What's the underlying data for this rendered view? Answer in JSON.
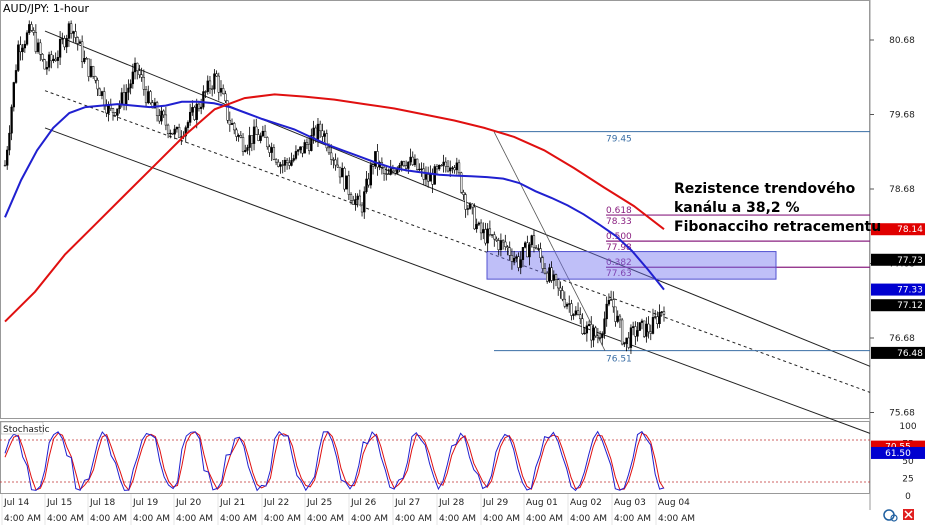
{
  "chart_data": {
    "type": "candlestick",
    "title": "AUD/JPY: 1-hour",
    "price_axis": {
      "ylim": [
        75.5,
        81.0
      ],
      "ticks": [
        "80.68",
        "79.68",
        "78.68",
        "77.68",
        "76.68",
        "75.68"
      ],
      "tick_values": [
        80.68,
        79.68,
        78.68,
        77.68,
        76.68,
        75.68
      ]
    },
    "price_labels": [
      {
        "text": "78.14",
        "value": 78.14,
        "color": "#e00000"
      },
      {
        "text": "77.73",
        "value": 77.73,
        "color": "#000000"
      },
      {
        "text": "77.33",
        "value": 77.33,
        "color": "#0000d0"
      },
      {
        "text": "77.12",
        "value": 77.12,
        "color": "#000000"
      },
      {
        "text": "76.48",
        "value": 76.48,
        "color": "#000000"
      }
    ],
    "x_axis": {
      "date_labels": [
        "Jul 14",
        "Jul 15",
        "Jul 18",
        "Jul 19",
        "Jul 20",
        "Jul 21",
        "Jul 22",
        "Jul 25",
        "Jul 26",
        "Jul 27",
        "Jul 28",
        "Jul 29",
        "Aug 01",
        "Aug 02",
        "Aug 03",
        "Aug 04"
      ],
      "time_labels": [
        "4:00 AM",
        "4:00 AM",
        "4:00 AM",
        "4:00 AM",
        "4:00 AM",
        "4:00 AM",
        "4:00 AM",
        "4:00 AM",
        "4:00 AM",
        "4:00 AM",
        "4:00 AM",
        "4:00 AM",
        "4:00 AM",
        "4:00 AM",
        "4:00 AM",
        "4:00 AM"
      ]
    },
    "series": [
      {
        "color": "#000000",
        "values": [
          79.0,
          80.6,
          80.8,
          80.3,
          80.5,
          80.9,
          80.4,
          80.1,
          79.7,
          79.9,
          80.3,
          79.8,
          79.6,
          79.4,
          79.6,
          79.9,
          80.2,
          79.6,
          79.3,
          79.4,
          79.3,
          79.0,
          79.1,
          79.3,
          79.5,
          79.1,
          78.7,
          78.4,
          79.1,
          78.8,
          79.1,
          79.0,
          78.8,
          78.9,
          79.1,
          78.5,
          78.1,
          78.0,
          77.9,
          77.7,
          78.0,
          77.6,
          77.3,
          77.1,
          76.8,
          76.7,
          77.2,
          76.6,
          76.8,
          76.8,
          77.12
        ]
      },
      {
        "color": "#2020d0",
        "values": [
          78.3,
          78.8,
          79.2,
          79.5,
          79.7,
          79.78,
          79.8,
          79.82,
          79.8,
          79.78,
          79.8,
          79.85,
          79.85,
          79.83,
          79.78,
          79.7,
          79.62,
          79.55,
          79.48,
          79.38,
          79.28,
          79.2,
          79.12,
          79.04,
          78.97,
          78.93,
          78.9,
          78.87,
          78.86,
          78.85,
          78.84,
          78.82,
          78.76,
          78.65,
          78.56,
          78.46,
          78.34,
          78.2,
          78.05,
          77.85,
          77.6,
          77.33
        ]
      },
      {
        "color": "#e01010",
        "values": [
          76.9,
          77.3,
          77.8,
          78.2,
          78.6,
          79.0,
          79.4,
          79.75,
          79.9,
          79.95,
          79.92,
          79.88,
          79.82,
          79.76,
          79.68,
          79.6,
          79.5,
          79.38,
          79.2,
          78.96,
          78.7,
          78.45,
          78.14
        ]
      }
    ],
    "channel": {
      "upper": [
        [
          80.8,
          76.3
        ]
      ],
      "mid": [
        [
          80.0,
          75.95
        ]
      ],
      "lower": [
        [
          79.5,
          75.4
        ]
      ]
    },
    "fibonacci": {
      "high": "79.45",
      "low": "76.51",
      "levels": [
        {
          "ratio": "0.618",
          "price": "78.33"
        },
        {
          "ratio": "0.500",
          "price": "77.98"
        },
        {
          "ratio": "0.382",
          "price": "77.63"
        }
      ]
    },
    "annotation": [
      "Rezistence trendového",
      "kanálu a 38,2 %",
      "Fibonacciho retracementu"
    ],
    "stochastic": {
      "title": "Stochastic",
      "ticks": [
        "100",
        "75",
        "50",
        "25",
        "0"
      ],
      "tick_values": [
        100,
        75,
        50,
        25,
        0
      ],
      "levels": [
        80,
        20
      ],
      "labels": [
        {
          "text": "70.55",
          "value": 70.55,
          "color": "#e00000"
        },
        {
          "text": "61.50",
          "value": 61.5,
          "color": "#0000d0"
        }
      ],
      "k_color": "#2020d0",
      "d_color": "#e01010"
    }
  }
}
